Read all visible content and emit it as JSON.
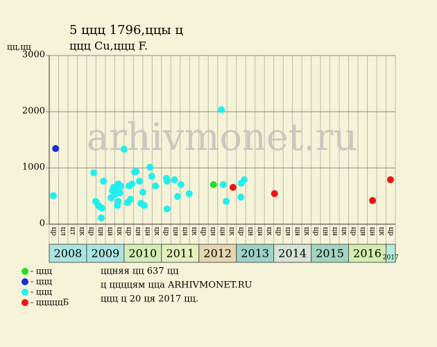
{
  "chart_data": {
    "type": "scatter",
    "title": "5 ццц 1796,ццы ц",
    "subtitle": "ццц Cu,ццц F.",
    "y_label": "цц,цц",
    "watermark": "arhivmonet.ru",
    "xlim": [
      2008,
      2017.25
    ],
    "ylim": [
      0,
      3000
    ],
    "yticks": [
      0,
      1000,
      2000,
      3000
    ],
    "grid": true,
    "x_sublabels": [
      "цр",
      "цл",
      "цт",
      "цк",
      "цр",
      "цн",
      "цн",
      "цк",
      "цр",
      "цн",
      "цн",
      "цк",
      "цр",
      "цн",
      "цн",
      "цк",
      "цр",
      "цн",
      "цн",
      "цк",
      "цр",
      "цн",
      "цн",
      "цк",
      "цр",
      "цн",
      "цн",
      "цк",
      "цр",
      "цн",
      "цн",
      "цк",
      "цр",
      "цн",
      "цн",
      "цк",
      "цр"
    ],
    "years": [
      {
        "label": "2008",
        "value": 2008,
        "color": "#a9e4e0"
      },
      {
        "label": "2009",
        "value": 2009,
        "color": "#a9e4e0"
      },
      {
        "label": "2010",
        "value": 2010,
        "color": "#d3edb5"
      },
      {
        "label": "2011",
        "value": 2011,
        "color": "#e3f0bd"
      },
      {
        "label": "2012",
        "value": 2012,
        "color": "#e3d6b0"
      },
      {
        "label": "2013",
        "value": 2013,
        "color": "#9dd3c5"
      },
      {
        "label": "2014",
        "value": 2014,
        "color": "#d8e3d8"
      },
      {
        "label": "2015",
        "value": 2015,
        "color": "#a2d4c2"
      },
      {
        "label": "2016",
        "value": 2016,
        "color": "#d5ecb0"
      },
      {
        "label": "2017",
        "value": 2017,
        "color": "#b4ecd8"
      }
    ],
    "series": [
      {
        "name": "- ццц",
        "color": "#22dd22",
        "x": [
          2012.39
        ],
        "values": [
          704
        ]
      },
      {
        "name": "- ццц",
        "color": "#1a2fd6",
        "x": [
          2008.17
        ],
        "values": [
          1345
        ]
      },
      {
        "name": "- ццц",
        "color": "#22eeee",
        "x": [
          2008.11,
          2009.19,
          2009.24,
          2009.3,
          2009.35,
          2009.41,
          2009.39,
          2009.45,
          2009.65,
          2009.69,
          2009.72,
          2009.76,
          2009.78,
          2009.82,
          2009.84,
          2009.85,
          2009.89,
          2009.91,
          2010.0,
          2010.09,
          2010.13,
          2010.17,
          2010.21,
          2010.28,
          2010.32,
          2010.41,
          2010.45,
          2010.5,
          2010.54,
          2010.69,
          2010.74,
          2010.84,
          2011.13,
          2011.15,
          2011.15,
          2011.35,
          2011.43,
          2011.52,
          2011.74,
          2012.6,
          2012.65,
          2012.73,
          2013.12,
          2013.13,
          2013.21
        ],
        "values": [
          506,
          914,
          407,
          346,
          309,
          284,
          111,
          765,
          469,
          593,
          654,
          531,
          617,
          333,
          407,
          716,
          556,
          679,
          1333,
          383,
          679,
          444,
          716,
          926,
          938,
          765,
          370,
          568,
          333,
          1012,
          852,
          679,
          815,
          765,
          272,
          790,
          494,
          704,
          543,
          2037,
          704,
          407,
          481,
          728,
          790
        ]
      },
      {
        "name": "- цццццБ",
        "color": "#ee1111",
        "x": [
          2012.91,
          2014.02,
          2016.64,
          2017.12
        ],
        "values": [
          654,
          543,
          420,
          790
        ]
      }
    ],
    "notes": [
      "ццняя цц 637 цц",
      "ц ццццям ццa ARHIVMONET.RU",
      "ццц ц 20 ця 2017 цц."
    ]
  }
}
